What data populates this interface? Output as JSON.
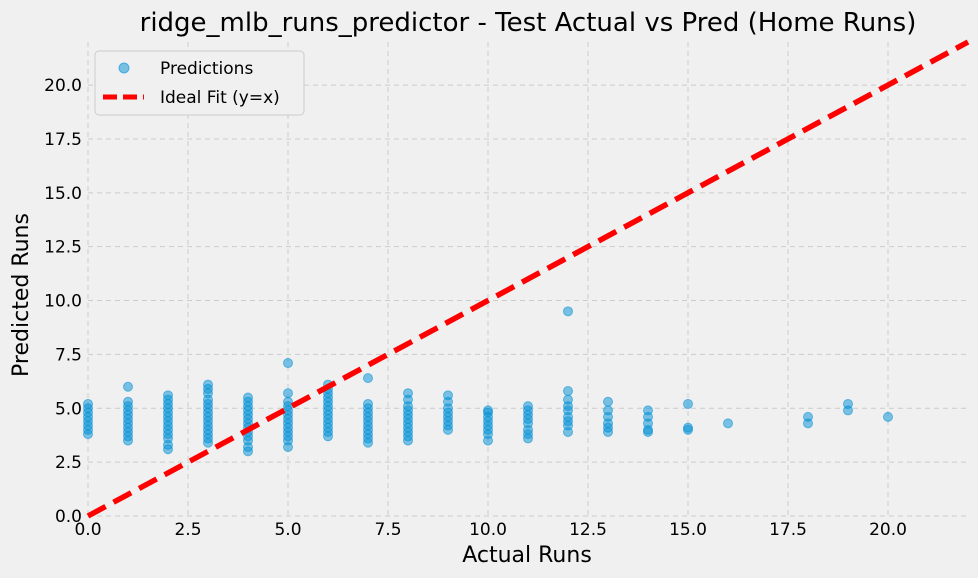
{
  "chart_data": {
    "type": "scatter",
    "title": "ridge_mlb_runs_predictor - Test Actual vs Pred (Home Runs)",
    "xlabel": "Actual Runs",
    "ylabel": "Predicted Runs",
    "xlim": [
      0,
      22
    ],
    "ylim": [
      0,
      22
    ],
    "xticks": [
      "0.0",
      "2.5",
      "5.0",
      "7.5",
      "10.0",
      "12.5",
      "15.0",
      "17.5",
      "20.0"
    ],
    "yticks": [
      "0.0",
      "2.5",
      "5.0",
      "7.5",
      "10.0",
      "12.5",
      "15.0",
      "17.5",
      "20.0"
    ],
    "grid": true,
    "legend": {
      "placement": "top-left",
      "entries": [
        "Predictions",
        "Ideal Fit (y=x)"
      ]
    },
    "colors": {
      "points": "#008fd5",
      "ideal_line": "#ff0000",
      "background": "#f0f0f0",
      "grid": "#cbcbcb"
    },
    "series": [
      {
        "name": "Predictions",
        "kind": "scatter",
        "points": [
          [
            0,
            3.8
          ],
          [
            0,
            4.0
          ],
          [
            0,
            4.2
          ],
          [
            0,
            4.4
          ],
          [
            0,
            4.6
          ],
          [
            0,
            4.8
          ],
          [
            0,
            5.0
          ],
          [
            0,
            5.2
          ],
          [
            1,
            3.5
          ],
          [
            1,
            3.7
          ],
          [
            1,
            3.9
          ],
          [
            1,
            4.1
          ],
          [
            1,
            4.3
          ],
          [
            1,
            4.5
          ],
          [
            1,
            4.7
          ],
          [
            1,
            4.9
          ],
          [
            1,
            5.1
          ],
          [
            1,
            5.3
          ],
          [
            1,
            6.0
          ],
          [
            2,
            3.1
          ],
          [
            2,
            3.3
          ],
          [
            2,
            3.6
          ],
          [
            2,
            3.8
          ],
          [
            2,
            4.0
          ],
          [
            2,
            4.2
          ],
          [
            2,
            4.4
          ],
          [
            2,
            4.6
          ],
          [
            2,
            4.8
          ],
          [
            2,
            5.0
          ],
          [
            2,
            5.2
          ],
          [
            2,
            5.4
          ],
          [
            2,
            5.6
          ],
          [
            3,
            3.4
          ],
          [
            3,
            3.6
          ],
          [
            3,
            3.8
          ],
          [
            3,
            4.0
          ],
          [
            3,
            4.2
          ],
          [
            3,
            4.4
          ],
          [
            3,
            4.6
          ],
          [
            3,
            4.8
          ],
          [
            3,
            5.0
          ],
          [
            3,
            5.2
          ],
          [
            3,
            5.4
          ],
          [
            3,
            5.7
          ],
          [
            3,
            5.9
          ],
          [
            3,
            6.1
          ],
          [
            4,
            3.0
          ],
          [
            4,
            3.2
          ],
          [
            4,
            3.5
          ],
          [
            4,
            3.7
          ],
          [
            4,
            3.9
          ],
          [
            4,
            4.1
          ],
          [
            4,
            4.3
          ],
          [
            4,
            4.5
          ],
          [
            4,
            4.7
          ],
          [
            4,
            4.9
          ],
          [
            4,
            5.1
          ],
          [
            4,
            5.3
          ],
          [
            4,
            5.5
          ],
          [
            5,
            3.2
          ],
          [
            5,
            3.5
          ],
          [
            5,
            3.7
          ],
          [
            5,
            3.9
          ],
          [
            5,
            4.1
          ],
          [
            5,
            4.3
          ],
          [
            5,
            4.5
          ],
          [
            5,
            4.7
          ],
          [
            5,
            4.9
          ],
          [
            5,
            5.1
          ],
          [
            5,
            5.3
          ],
          [
            5,
            5.7
          ],
          [
            5,
            7.1
          ],
          [
            6,
            3.7
          ],
          [
            6,
            3.9
          ],
          [
            6,
            4.1
          ],
          [
            6,
            4.3
          ],
          [
            6,
            4.5
          ],
          [
            6,
            4.7
          ],
          [
            6,
            4.9
          ],
          [
            6,
            5.1
          ],
          [
            6,
            5.3
          ],
          [
            6,
            5.5
          ],
          [
            6,
            5.7
          ],
          [
            6,
            5.9
          ],
          [
            6,
            6.1
          ],
          [
            7,
            3.4
          ],
          [
            7,
            3.6
          ],
          [
            7,
            3.8
          ],
          [
            7,
            4.0
          ],
          [
            7,
            4.2
          ],
          [
            7,
            4.4
          ],
          [
            7,
            4.6
          ],
          [
            7,
            4.8
          ],
          [
            7,
            5.0
          ],
          [
            7,
            5.2
          ],
          [
            7,
            6.4
          ],
          [
            8,
            3.5
          ],
          [
            8,
            3.7
          ],
          [
            8,
            3.9
          ],
          [
            8,
            4.1
          ],
          [
            8,
            4.3
          ],
          [
            8,
            4.5
          ],
          [
            8,
            4.7
          ],
          [
            8,
            4.9
          ],
          [
            8,
            5.1
          ],
          [
            8,
            5.4
          ],
          [
            8,
            5.7
          ],
          [
            9,
            4.0
          ],
          [
            9,
            4.2
          ],
          [
            9,
            4.4
          ],
          [
            9,
            4.6
          ],
          [
            9,
            4.8
          ],
          [
            9,
            5.0
          ],
          [
            9,
            5.3
          ],
          [
            9,
            5.6
          ],
          [
            10,
            3.5
          ],
          [
            10,
            3.8
          ],
          [
            10,
            4.0
          ],
          [
            10,
            4.2
          ],
          [
            10,
            4.4
          ],
          [
            10,
            4.6
          ],
          [
            10,
            4.8
          ],
          [
            10,
            4.9
          ],
          [
            11,
            3.6
          ],
          [
            11,
            3.8
          ],
          [
            11,
            4.0
          ],
          [
            11,
            4.3
          ],
          [
            11,
            4.5
          ],
          [
            11,
            4.7
          ],
          [
            11,
            4.9
          ],
          [
            11,
            5.1
          ],
          [
            12,
            3.9
          ],
          [
            12,
            4.2
          ],
          [
            12,
            4.4
          ],
          [
            12,
            4.6
          ],
          [
            12,
            4.9
          ],
          [
            12,
            5.1
          ],
          [
            12,
            5.4
          ],
          [
            12,
            5.8
          ],
          [
            12,
            9.5
          ],
          [
            13,
            3.9
          ],
          [
            13,
            4.1
          ],
          [
            13,
            4.3
          ],
          [
            13,
            4.6
          ],
          [
            13,
            4.9
          ],
          [
            13,
            5.3
          ],
          [
            14,
            3.9
          ],
          [
            14,
            4.0
          ],
          [
            14,
            4.3
          ],
          [
            14,
            4.6
          ],
          [
            14,
            4.9
          ],
          [
            15,
            4.0
          ],
          [
            15,
            4.1
          ],
          [
            15,
            5.2
          ],
          [
            16,
            4.3
          ],
          [
            18,
            4.3
          ],
          [
            18,
            4.6
          ],
          [
            19,
            4.9
          ],
          [
            19,
            5.2
          ],
          [
            20,
            4.6
          ]
        ]
      },
      {
        "name": "Ideal Fit (y=x)",
        "kind": "line",
        "points": [
          [
            0,
            0
          ],
          [
            22,
            22
          ]
        ]
      }
    ]
  }
}
